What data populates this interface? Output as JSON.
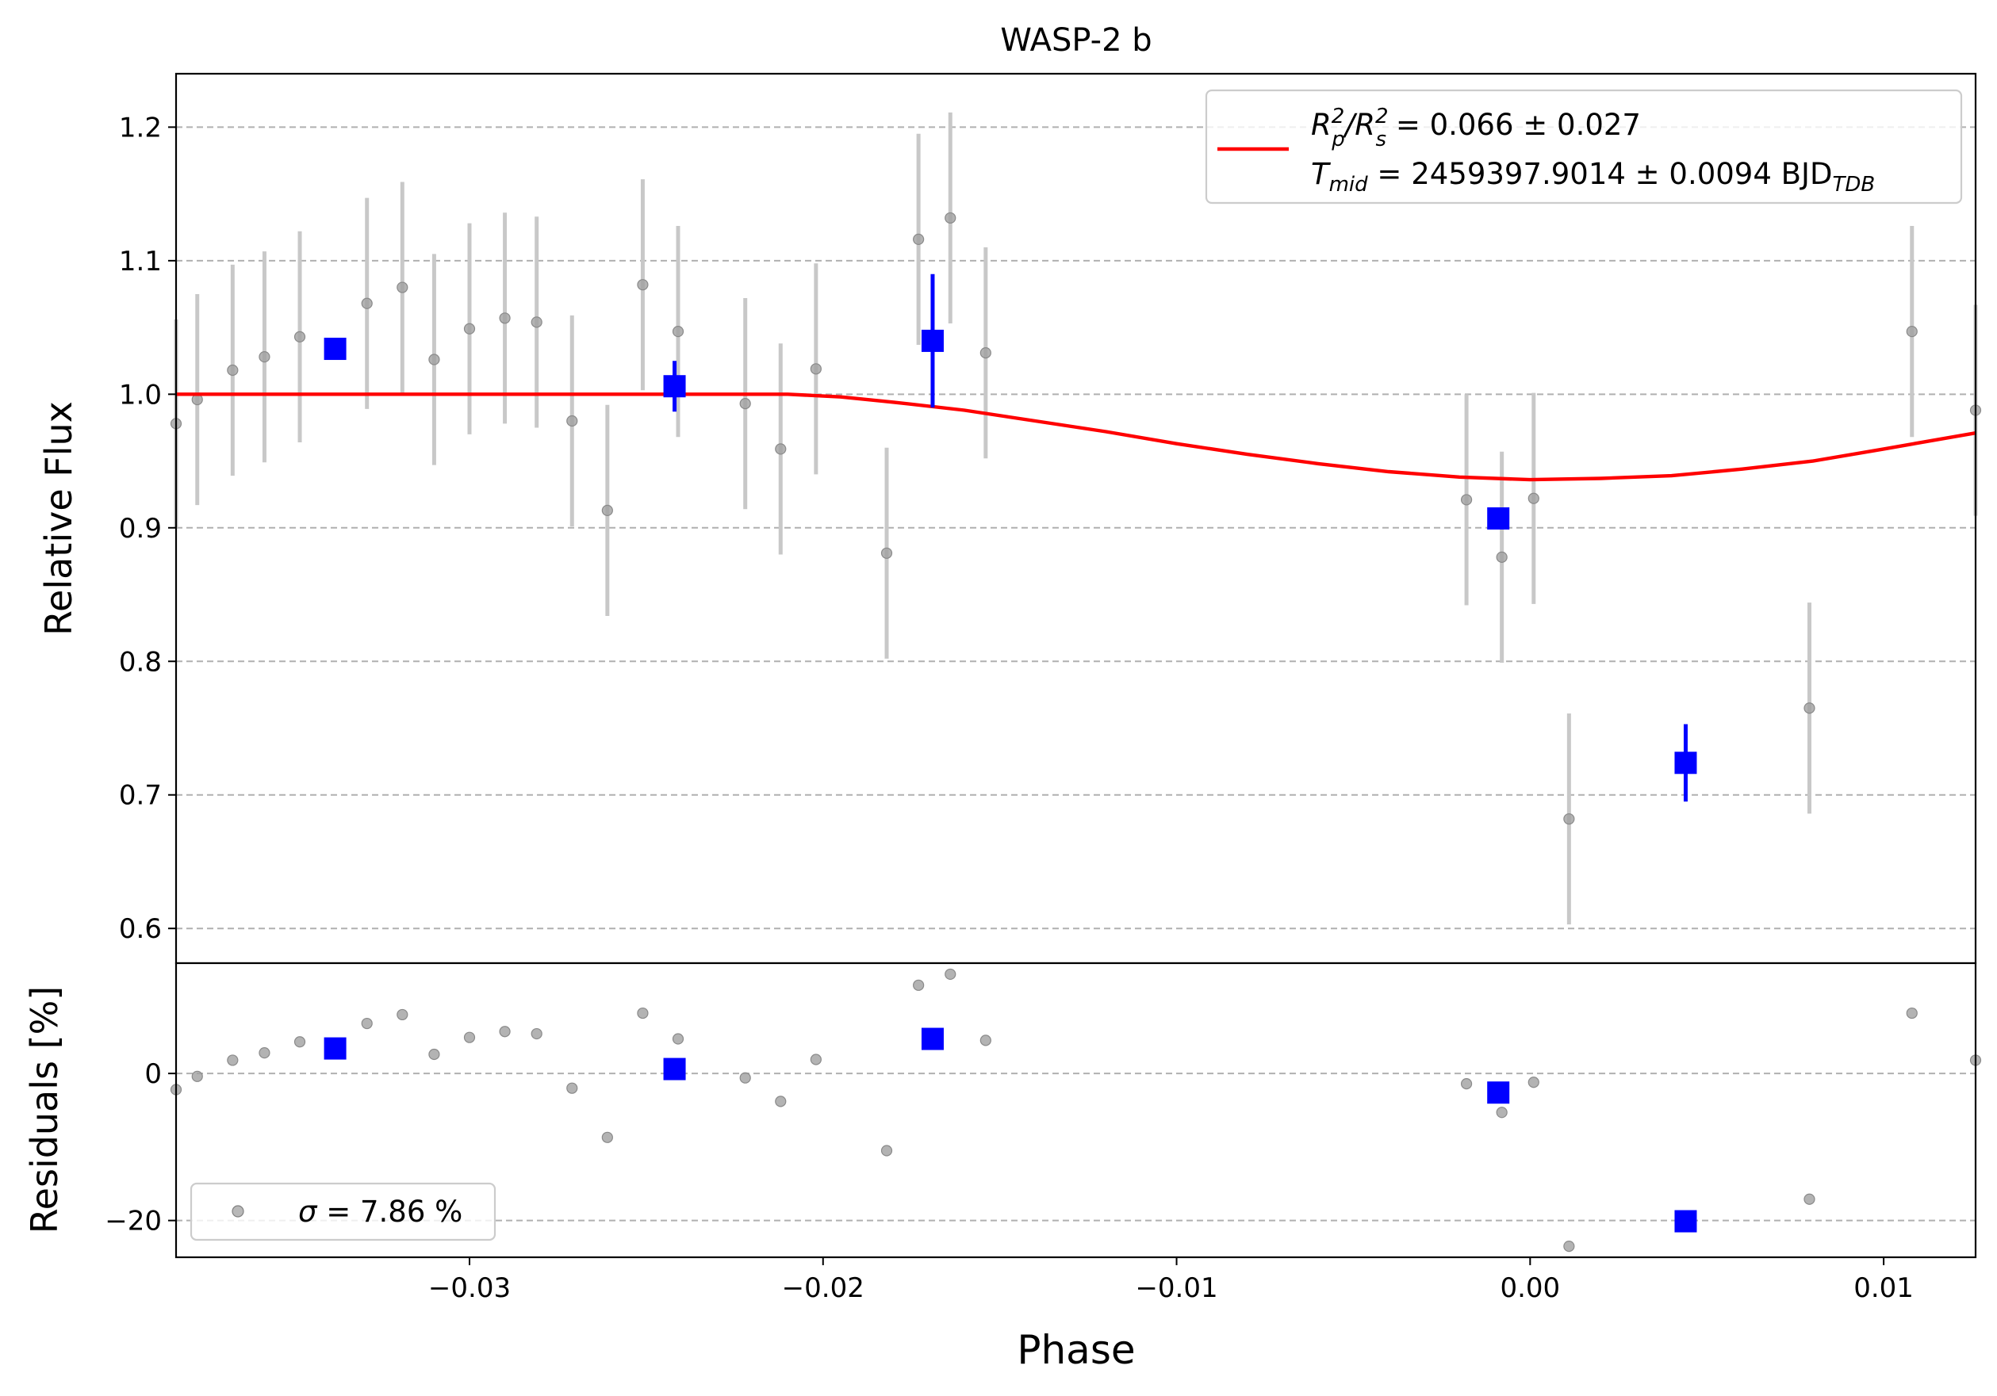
{
  "chart_data": {
    "type": "scatter",
    "title": "WASP-2 b",
    "xlabel": "Phase",
    "xlim": [
      -0.0383,
      0.0126
    ],
    "xticks": [
      -0.03,
      -0.02,
      -0.01,
      0.0,
      0.01
    ],
    "xtick_labels": [
      "−0.03",
      "−0.02",
      "−0.01",
      "0.00",
      "0.01"
    ],
    "grid": "horizontal dashed",
    "top_panel": {
      "ylabel": "Relative Flux",
      "ylim": [
        0.574,
        1.24
      ],
      "yticks": [
        0.6,
        0.7,
        0.8,
        0.9,
        1.0,
        1.1,
        1.2
      ],
      "ytick_labels": [
        "0.6",
        "0.7",
        "0.8",
        "0.9",
        "1.0",
        "1.1",
        "1.2"
      ],
      "legend": {
        "placement": "upper-right",
        "line_color": "#ff0000",
        "entry_1": {
          "pre": "R",
          "sub1": "p",
          "sup1": "2",
          "mid": "/R",
          "sub2": "s",
          "sup2": "2",
          "post": " = 0.066 ± 0.027"
        },
        "entry_2": {
          "pre": "T",
          "sub1": "mid",
          "post": " = 2459397.9014 ± 0.0094 BJD",
          "sub2": "TDB"
        }
      },
      "raw_points": [
        {
          "x": -0.0383,
          "y": 0.978,
          "err": 0.078
        },
        {
          "x": -0.0377,
          "y": 0.996,
          "err": 0.079
        },
        {
          "x": -0.0367,
          "y": 1.018,
          "err": 0.079
        },
        {
          "x": -0.0358,
          "y": 1.028,
          "err": 0.079
        },
        {
          "x": -0.0348,
          "y": 1.043,
          "err": 0.079
        },
        {
          "x": -0.0329,
          "y": 1.068,
          "err": 0.079
        },
        {
          "x": -0.0319,
          "y": 1.08,
          "err": 0.079
        },
        {
          "x": -0.031,
          "y": 1.026,
          "err": 0.079
        },
        {
          "x": -0.03,
          "y": 1.049,
          "err": 0.079
        },
        {
          "x": -0.029,
          "y": 1.057,
          "err": 0.079
        },
        {
          "x": -0.0281,
          "y": 1.054,
          "err": 0.079
        },
        {
          "x": -0.0271,
          "y": 0.98,
          "err": 0.079
        },
        {
          "x": -0.0261,
          "y": 0.913,
          "err": 0.079
        },
        {
          "x": -0.0251,
          "y": 1.082,
          "err": 0.079
        },
        {
          "x": -0.0241,
          "y": 1.047,
          "err": 0.079
        },
        {
          "x": -0.0222,
          "y": 0.993,
          "err": 0.079
        },
        {
          "x": -0.0212,
          "y": 0.959,
          "err": 0.079
        },
        {
          "x": -0.0202,
          "y": 1.019,
          "err": 0.079
        },
        {
          "x": -0.0182,
          "y": 0.881,
          "err": 0.079
        },
        {
          "x": -0.0173,
          "y": 1.116,
          "err": 0.079
        },
        {
          "x": -0.0164,
          "y": 1.132,
          "err": 0.079
        },
        {
          "x": -0.0154,
          "y": 1.031,
          "err": 0.079
        },
        {
          "x": -0.0018,
          "y": 0.921,
          "err": 0.079
        },
        {
          "x": -0.0008,
          "y": 0.878,
          "err": 0.079
        },
        {
          "x": 0.0001,
          "y": 0.922,
          "err": 0.079
        },
        {
          "x": 0.0011,
          "y": 0.682,
          "err": 0.079
        },
        {
          "x": 0.0079,
          "y": 0.765,
          "err": 0.079
        },
        {
          "x": 0.0108,
          "y": 1.047,
          "err": 0.079
        },
        {
          "x": 0.0126,
          "y": 0.988,
          "err": 0.079
        }
      ],
      "binned_points": [
        {
          "x": -0.0338,
          "y": 1.034,
          "err": 0.008
        },
        {
          "x": -0.0242,
          "y": 1.006,
          "err": 0.019
        },
        {
          "x": -0.0169,
          "y": 1.04,
          "err": 0.05
        },
        {
          "x": -0.0009,
          "y": 0.907,
          "err": 0.008
        },
        {
          "x": 0.0044,
          "y": 0.724,
          "err": 0.029
        }
      ],
      "model_curve": [
        {
          "x": -0.0383,
          "y": 1.0
        },
        {
          "x": -0.021,
          "y": 1.0
        },
        {
          "x": -0.0195,
          "y": 0.998
        },
        {
          "x": -0.018,
          "y": 0.994
        },
        {
          "x": -0.016,
          "y": 0.988
        },
        {
          "x": -0.014,
          "y": 0.98
        },
        {
          "x": -0.012,
          "y": 0.972
        },
        {
          "x": -0.01,
          "y": 0.963
        },
        {
          "x": -0.008,
          "y": 0.955
        },
        {
          "x": -0.006,
          "y": 0.948
        },
        {
          "x": -0.004,
          "y": 0.942
        },
        {
          "x": -0.002,
          "y": 0.938
        },
        {
          "x": 0.0,
          "y": 0.936
        },
        {
          "x": 0.002,
          "y": 0.937
        },
        {
          "x": 0.004,
          "y": 0.939
        },
        {
          "x": 0.006,
          "y": 0.944
        },
        {
          "x": 0.008,
          "y": 0.95
        },
        {
          "x": 0.01,
          "y": 0.959
        },
        {
          "x": 0.0126,
          "y": 0.971
        }
      ]
    },
    "bottom_panel": {
      "ylabel": "Residuals [%]",
      "ylim": [
        -25,
        15
      ],
      "yticks": [
        -20,
        0
      ],
      "ytick_labels": [
        "−20",
        "0"
      ],
      "legend": {
        "placement": "lower-left",
        "symbol": "σ",
        "text": " = 7.86 %"
      },
      "raw_points": [
        {
          "x": -0.0383,
          "y": -2.2
        },
        {
          "x": -0.0377,
          "y": -0.4
        },
        {
          "x": -0.0367,
          "y": 1.8
        },
        {
          "x": -0.0358,
          "y": 2.8
        },
        {
          "x": -0.0348,
          "y": 4.3
        },
        {
          "x": -0.0329,
          "y": 6.8
        },
        {
          "x": -0.0319,
          "y": 8.0
        },
        {
          "x": -0.031,
          "y": 2.6
        },
        {
          "x": -0.03,
          "y": 4.9
        },
        {
          "x": -0.029,
          "y": 5.7
        },
        {
          "x": -0.0281,
          "y": 5.4
        },
        {
          "x": -0.0271,
          "y": -2.0
        },
        {
          "x": -0.0261,
          "y": -8.7
        },
        {
          "x": -0.0251,
          "y": 8.2
        },
        {
          "x": -0.0241,
          "y": 4.7
        },
        {
          "x": -0.0222,
          "y": -0.6
        },
        {
          "x": -0.0212,
          "y": -3.8
        },
        {
          "x": -0.0202,
          "y": 1.9
        },
        {
          "x": -0.0182,
          "y": -10.5
        },
        {
          "x": -0.0173,
          "y": 12.0
        },
        {
          "x": -0.0164,
          "y": 13.5
        },
        {
          "x": -0.0154,
          "y": 4.5
        },
        {
          "x": -0.0018,
          "y": -1.4
        },
        {
          "x": -0.0008,
          "y": -5.3
        },
        {
          "x": 0.0001,
          "y": -1.2
        },
        {
          "x": 0.0011,
          "y": -23.5
        },
        {
          "x": 0.0079,
          "y": -17.1
        },
        {
          "x": 0.0108,
          "y": 8.2
        },
        {
          "x": 0.0126,
          "y": 1.8
        }
      ],
      "binned_points": [
        {
          "x": -0.0338,
          "y": 3.4
        },
        {
          "x": -0.0242,
          "y": 0.6
        },
        {
          "x": -0.0169,
          "y": 4.7
        },
        {
          "x": -0.0009,
          "y": -2.6
        },
        {
          "x": 0.0044,
          "y": -20.1
        }
      ]
    },
    "colors": {
      "raw": "#a0a0a0",
      "errorbar": "#c8c8c8",
      "binned": "#0000ff",
      "model": "#ff0000",
      "grid": "#b0b0b0"
    }
  }
}
